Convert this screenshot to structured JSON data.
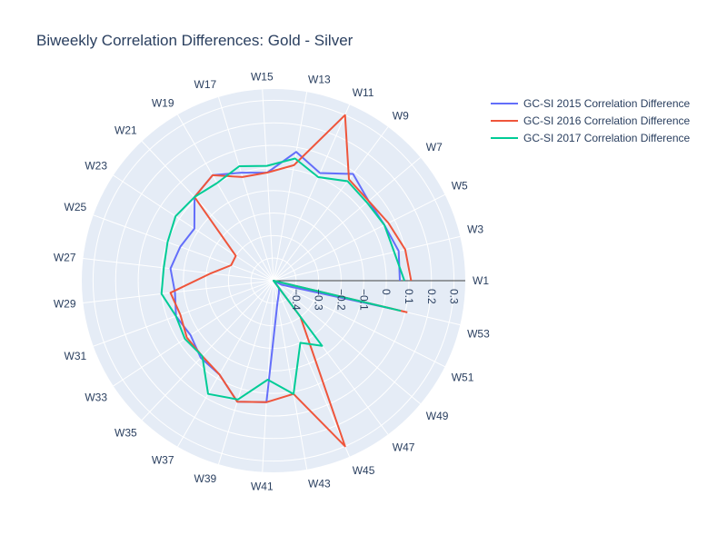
{
  "chart_data": {
    "type": "line",
    "polar": true,
    "title": "Biweekly Correlation Differences: Gold - Silver",
    "angular_categories": [
      "W1",
      "W3",
      "W5",
      "W7",
      "W9",
      "W11",
      "W13",
      "W15",
      "W17",
      "W19",
      "W21",
      "W23",
      "W25",
      "W27",
      "W29",
      "W31",
      "W33",
      "W35",
      "W37",
      "W39",
      "W41",
      "W43",
      "W45",
      "W47",
      "W49",
      "W51",
      "W53"
    ],
    "radial_range": [
      -0.5,
      0.35
    ],
    "radial_ticks": [
      -0.4,
      -0.3,
      -0.2,
      -0.1,
      0,
      0.1,
      0.2,
      0.3
    ],
    "radial_tick_labels": [
      "−0.4",
      "−0.3",
      "−0.2",
      "−0.1",
      "0",
      "0.1",
      "0.2",
      "0.3"
    ],
    "legend_position": "top-right",
    "series": [
      {
        "name": "GC-SI 2015 Correlation Difference",
        "color": "#636efa",
        "values": [
          0.06,
          0.07,
          0.05,
          0.05,
          0.09,
          0.02,
          0.08,
          -0.02,
          0.0,
          0.04,
          0.01,
          -0.08,
          -0.06,
          -0.04,
          -0.06,
          -0.04,
          -0.06,
          -0.03,
          -0.02,
          0.06,
          0.04,
          -0.4,
          -0.44,
          -0.46,
          -0.5,
          -0.46,
          0.04
        ]
      },
      {
        "name": "GC-SI 2016 Correlation Difference",
        "color": "#ef553b",
        "values": [
          0.11,
          0.1,
          0.07,
          0.05,
          0.06,
          0.3,
          0.02,
          -0.02,
          -0.02,
          0.04,
          0.01,
          -0.3,
          -0.3,
          -0.22,
          -0.04,
          -0.06,
          -0.04,
          -0.04,
          -0.02,
          0.06,
          0.04,
          0.01,
          0.3,
          -0.3,
          -0.5,
          -0.5,
          0.11
        ]
      },
      {
        "name": "GC-SI 2017 Correlation Difference",
        "color": "#00cc96",
        "values": [
          0.08,
          0.05,
          0.05,
          0.04,
          0.05,
          0.0,
          0.05,
          0.01,
          0.03,
          0.0,
          0.01,
          0.02,
          0.0,
          -0.01,
          0.0,
          -0.04,
          -0.03,
          -0.04,
          0.08,
          0.05,
          -0.06,
          0.01,
          -0.2,
          -0.14,
          -0.5,
          -0.5,
          0.08
        ]
      }
    ]
  }
}
